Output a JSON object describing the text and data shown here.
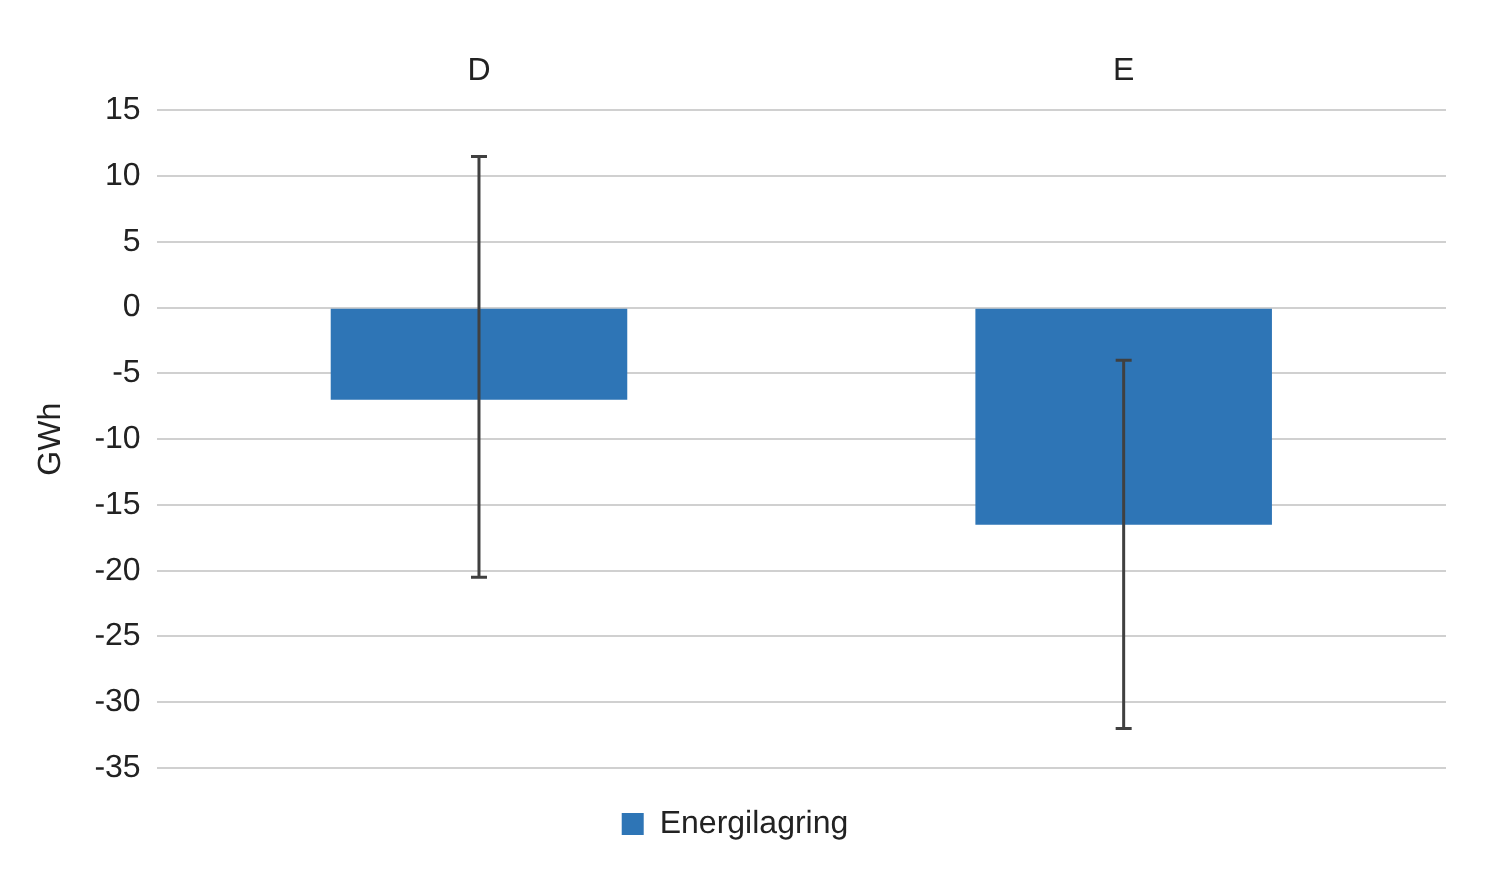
{
  "chart_data": {
    "type": "bar",
    "ylabel": "GWh",
    "categories": [
      "D",
      "E"
    ],
    "series": [
      {
        "name": "Energilagring",
        "color": "#2e75b6",
        "values": [
          -7,
          -16.5
        ],
        "errors": [
          [
            -20.5,
            11.5
          ],
          [
            -32,
            -4
          ]
        ]
      }
    ],
    "ylim": [
      -35,
      15
    ],
    "yticks": [
      -35,
      -30,
      -25,
      -20,
      -15,
      -10,
      -5,
      0,
      5,
      10,
      15
    ],
    "grid": "y",
    "legend": "bottom"
  }
}
